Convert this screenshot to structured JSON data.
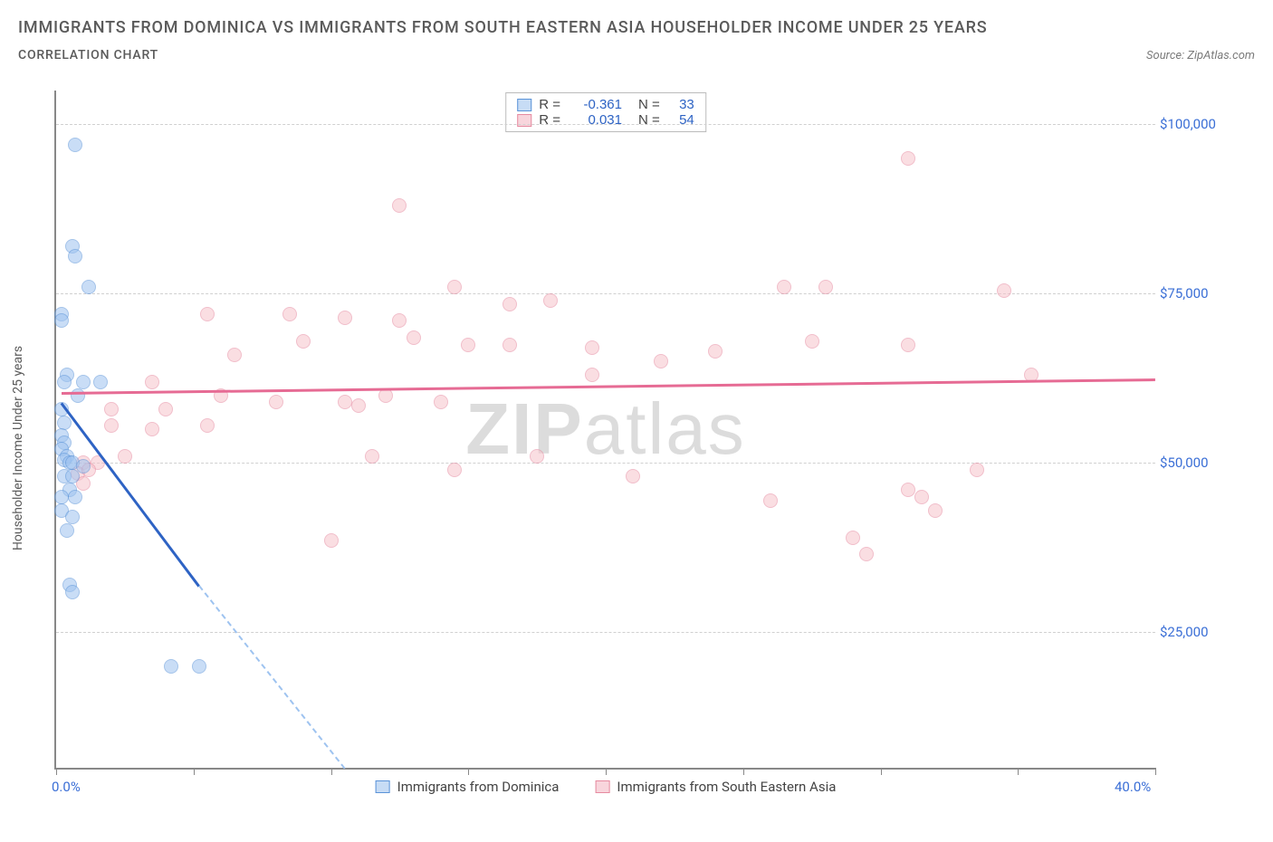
{
  "header": {
    "title": "IMMIGRANTS FROM DOMINICA VS IMMIGRANTS FROM SOUTH EASTERN ASIA HOUSEHOLDER INCOME UNDER 25 YEARS",
    "subtitle": "CORRELATION CHART",
    "source": "Source: ZipAtlas.com"
  },
  "watermark": {
    "bold": "ZIP",
    "rest": "atlas"
  },
  "chart": {
    "type": "scatter",
    "background_color": "#ffffff",
    "grid_color": "#d0d0d0",
    "axis_color": "#888888",
    "xlim": [
      0,
      40
    ],
    "ylim": [
      5000,
      105000
    ],
    "x_ticks": [
      0,
      5,
      10,
      15,
      20,
      25,
      30,
      35,
      40
    ],
    "x_tick_labels": {
      "0": "0.0%",
      "40": "40.0%"
    },
    "y_ticks": [
      25000,
      50000,
      75000,
      100000
    ],
    "y_tick_labels": [
      "$25,000",
      "$50,000",
      "$75,000",
      "$100,000"
    ],
    "y_axis_label": "Householder Income Under 25 years",
    "stats_legend": [
      {
        "swatch": "a",
        "r_label": "R =",
        "r_value": "-0.361",
        "n_label": "N =",
        "n_value": "33"
      },
      {
        "swatch": "b",
        "r_label": "R =",
        "r_value": " 0.031",
        "n_label": "N =",
        "n_value": "54"
      }
    ],
    "series_legend": [
      {
        "swatch": "a",
        "label": "Immigrants from Dominica"
      },
      {
        "swatch": "b",
        "label": "Immigrants from South Eastern Asia"
      }
    ],
    "series_a": {
      "color_fill": "#9ec3f0",
      "color_stroke": "#5a93d8",
      "trend": {
        "solid_from": [
          0.2,
          59000
        ],
        "solid_to": [
          5.2,
          32000
        ],
        "dash_to": [
          10.5,
          5000
        ],
        "color": "#2e63c4"
      },
      "points": [
        [
          0.7,
          97000
        ],
        [
          0.6,
          82000
        ],
        [
          0.7,
          80500
        ],
        [
          1.2,
          76000
        ],
        [
          0.2,
          72000
        ],
        [
          0.2,
          71000
        ],
        [
          0.4,
          63000
        ],
        [
          0.3,
          62000
        ],
        [
          1.0,
          62000
        ],
        [
          1.6,
          62000
        ],
        [
          0.2,
          58000
        ],
        [
          0.8,
          60000
        ],
        [
          0.3,
          56000
        ],
        [
          0.2,
          54000
        ],
        [
          0.3,
          53000
        ],
        [
          0.2,
          52000
        ],
        [
          0.4,
          51000
        ],
        [
          0.3,
          50500
        ],
        [
          0.5,
          50000
        ],
        [
          0.6,
          50000
        ],
        [
          1.0,
          49500
        ],
        [
          0.3,
          48000
        ],
        [
          0.6,
          48000
        ],
        [
          0.5,
          46000
        ],
        [
          0.2,
          45000
        ],
        [
          0.7,
          45000
        ],
        [
          0.2,
          43000
        ],
        [
          0.6,
          42000
        ],
        [
          0.4,
          40000
        ],
        [
          0.5,
          32000
        ],
        [
          0.6,
          31000
        ],
        [
          4.2,
          20000
        ],
        [
          5.2,
          20000
        ]
      ]
    },
    "series_b": {
      "color_fill": "#f6c4cc",
      "color_stroke": "#e68aa0",
      "trend": {
        "from": [
          0.2,
          60500
        ],
        "to": [
          40,
          62500
        ],
        "color": "#e66b94"
      },
      "points": [
        [
          31.0,
          95000
        ],
        [
          12.5,
          88000
        ],
        [
          14.5,
          76000
        ],
        [
          16.5,
          73500
        ],
        [
          18.0,
          74000
        ],
        [
          26.5,
          76000
        ],
        [
          28.0,
          76000
        ],
        [
          34.5,
          75500
        ],
        [
          5.5,
          72000
        ],
        [
          8.5,
          72000
        ],
        [
          10.5,
          71500
        ],
        [
          12.5,
          71000
        ],
        [
          6.5,
          66000
        ],
        [
          9.0,
          68000
        ],
        [
          13.0,
          68500
        ],
        [
          15.0,
          67500
        ],
        [
          16.5,
          67500
        ],
        [
          19.5,
          67000
        ],
        [
          24.0,
          66500
        ],
        [
          27.5,
          68000
        ],
        [
          31.0,
          67500
        ],
        [
          19.5,
          63000
        ],
        [
          35.5,
          63000
        ],
        [
          3.5,
          62000
        ],
        [
          6.0,
          60000
        ],
        [
          2.0,
          58000
        ],
        [
          3.5,
          55000
        ],
        [
          8.0,
          59000
        ],
        [
          10.5,
          59000
        ],
        [
          11.0,
          58500
        ],
        [
          5.5,
          55500
        ],
        [
          14.0,
          59000
        ],
        [
          1.0,
          50000
        ],
        [
          1.5,
          50000
        ],
        [
          0.8,
          48500
        ],
        [
          1.2,
          49000
        ],
        [
          1.0,
          47000
        ],
        [
          2.5,
          51000
        ],
        [
          11.5,
          51000
        ],
        [
          17.5,
          51000
        ],
        [
          14.5,
          49000
        ],
        [
          21.0,
          48000
        ],
        [
          26.0,
          44500
        ],
        [
          33.5,
          49000
        ],
        [
          31.0,
          46000
        ],
        [
          31.5,
          45000
        ],
        [
          29.5,
          36500
        ],
        [
          32.0,
          43000
        ],
        [
          29.0,
          39000
        ],
        [
          10.0,
          38500
        ],
        [
          2.0,
          55500
        ],
        [
          4.0,
          58000
        ],
        [
          12.0,
          60000
        ],
        [
          22.0,
          65000
        ]
      ]
    }
  }
}
